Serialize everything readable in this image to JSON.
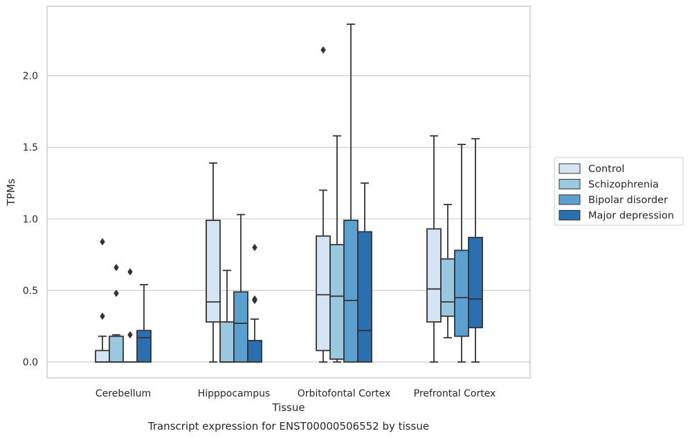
{
  "chart_data": {
    "type": "box",
    "title": "Transcript expression for ENST00000506552 by tissue",
    "xlabel": "Tissue",
    "ylabel": "TPMs",
    "categories": [
      "Cerebellum",
      "Hipppocampus",
      "Orbitofontal Cortex",
      "Prefrontal Cortex"
    ],
    "ylim": [
      -0.115,
      2.45
    ],
    "yticks": [
      0.0,
      0.5,
      1.0,
      1.5,
      2.0
    ],
    "ytick_labels": [
      "0.0",
      "0.5",
      "1.0",
      "1.5",
      "2.0"
    ],
    "grid": true,
    "legend_position": "right",
    "series": [
      {
        "name": "Control",
        "color": "#d4e4f4",
        "boxes": [
          {
            "category": "Cerebellum",
            "whisker_low": 0.0,
            "q1": 0.0,
            "median": 0.0,
            "q3": 0.08,
            "whisker_high": 0.18,
            "outliers": [
              0.32,
              0.84
            ]
          },
          {
            "category": "Hipppocampus",
            "whisker_low": 0.0,
            "q1": 0.28,
            "median": 0.42,
            "q3": 0.99,
            "whisker_high": 1.39,
            "outliers": []
          },
          {
            "category": "Orbitofontal Cortex",
            "whisker_low": 0.0,
            "q1": 0.08,
            "median": 0.47,
            "q3": 0.88,
            "whisker_high": 1.2,
            "outliers": [
              2.18
            ]
          },
          {
            "category": "Prefrontal Cortex",
            "whisker_low": 0.0,
            "q1": 0.28,
            "median": 0.51,
            "q3": 0.93,
            "whisker_high": 1.58,
            "outliers": []
          }
        ]
      },
      {
        "name": "Schizophrenia",
        "color": "#9ac8e0",
        "boxes": [
          {
            "category": "Cerebellum",
            "whisker_low": 0.0,
            "q1": 0.0,
            "median": 0.0,
            "q3": 0.18,
            "whisker_high": 0.19,
            "outliers": [
              0.48,
              0.66
            ]
          },
          {
            "category": "Hipppocampus",
            "whisker_low": 0.0,
            "q1": 0.0,
            "median": 0.0,
            "q3": 0.28,
            "whisker_high": 0.64,
            "outliers": []
          },
          {
            "category": "Orbitofontal Cortex",
            "whisker_low": 0.0,
            "q1": 0.02,
            "median": 0.46,
            "q3": 0.82,
            "whisker_high": 1.58,
            "outliers": []
          },
          {
            "category": "Prefrontal Cortex",
            "whisker_low": 0.17,
            "q1": 0.32,
            "median": 0.42,
            "q3": 0.72,
            "whisker_high": 1.1,
            "outliers": []
          }
        ]
      },
      {
        "name": "Bipolar disorder",
        "color": "#5ba1cf",
        "boxes": [
          {
            "category": "Cerebellum",
            "whisker_low": 0.0,
            "q1": 0.0,
            "median": 0.0,
            "q3": 0.0,
            "whisker_high": 0.0,
            "outliers": [
              0.19,
              0.63
            ]
          },
          {
            "category": "Hipppocampus",
            "whisker_low": 0.0,
            "q1": 0.0,
            "median": 0.27,
            "q3": 0.49,
            "whisker_high": 1.03,
            "outliers": []
          },
          {
            "category": "Orbitofontal Cortex",
            "whisker_low": 0.0,
            "q1": 0.0,
            "median": 0.43,
            "q3": 0.99,
            "whisker_high": 2.36,
            "outliers": []
          },
          {
            "category": "Prefrontal Cortex",
            "whisker_low": 0.0,
            "q1": 0.18,
            "median": 0.45,
            "q3": 0.78,
            "whisker_high": 1.52,
            "outliers": []
          }
        ]
      },
      {
        "name": "Major depression",
        "color": "#2a6fb0",
        "boxes": [
          {
            "category": "Cerebellum",
            "whisker_low": 0.0,
            "q1": 0.0,
            "median": 0.17,
            "q3": 0.22,
            "whisker_high": 0.54,
            "outliers": []
          },
          {
            "category": "Hipppocampus",
            "whisker_low": 0.0,
            "q1": 0.0,
            "median": 0.0,
            "q3": 0.15,
            "whisker_high": 0.3,
            "outliers": [
              0.43,
              0.44,
              0.8
            ]
          },
          {
            "category": "Orbitofontal Cortex",
            "whisker_low": 0.0,
            "q1": 0.0,
            "median": 0.22,
            "q3": 0.91,
            "whisker_high": 1.25,
            "outliers": []
          },
          {
            "category": "Prefrontal Cortex",
            "whisker_low": 0.0,
            "q1": 0.24,
            "median": 0.44,
            "q3": 0.87,
            "whisker_high": 1.56,
            "outliers": []
          }
        ]
      }
    ],
    "colors": {
      "line": "#333333",
      "grid": "#cccccc",
      "frame": "#cccccc"
    }
  }
}
